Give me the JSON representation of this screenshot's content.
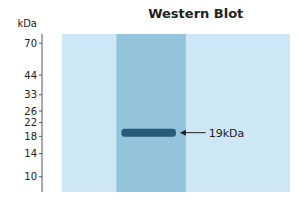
{
  "chart_data": {
    "type": "blot",
    "title": "Western Blot",
    "y_label": "kDa",
    "values": [
      19
    ],
    "value_labels": [
      "19kDa"
    ],
    "data_labels": true,
    "color": "#2a5a7a",
    "log": "y",
    "ylim": [
      8,
      80
    ],
    "yticks": [
      70,
      44,
      33,
      26,
      22,
      18,
      14,
      10
    ],
    "grid": false,
    "tick_labels": "y"
  }
}
